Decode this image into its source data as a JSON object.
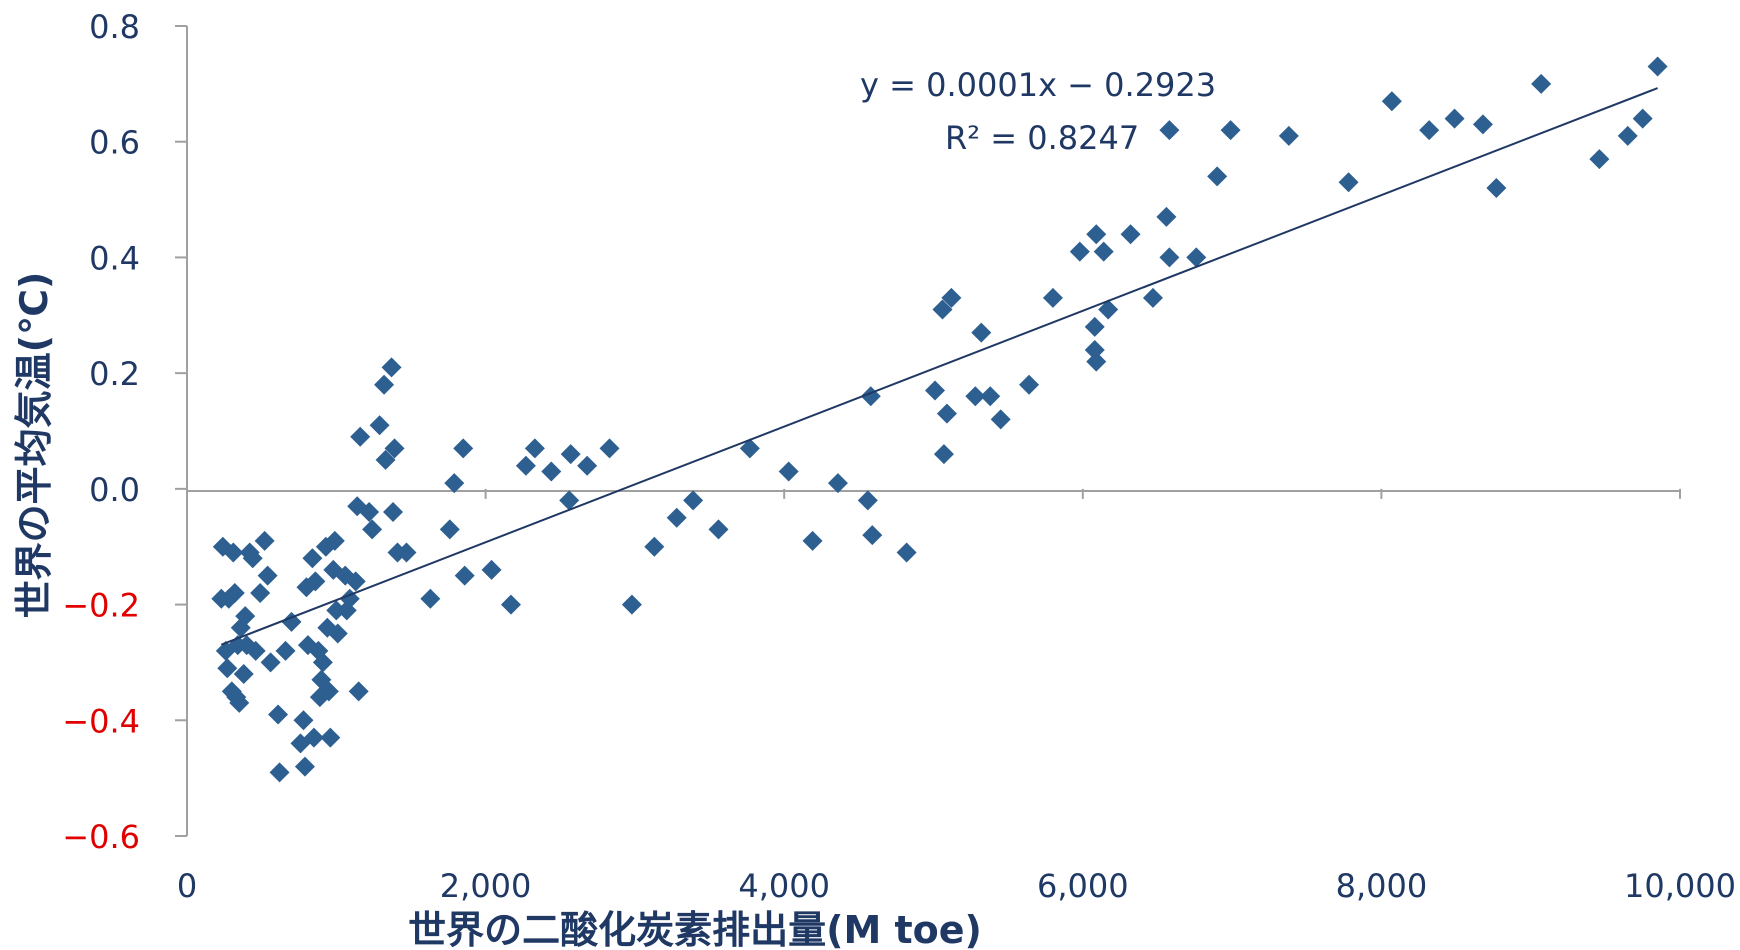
{
  "chart_data": {
    "type": "scatter",
    "xlabel": "世界の二酸化炭素排出量(M toe)",
    "ylabel": "世界の平均気温(℃)",
    "xlim": [
      0,
      10000
    ],
    "ylim": [
      -0.6,
      0.8
    ],
    "xticks": [
      "0",
      "2,000",
      "4,000",
      "6,000",
      "8,000",
      "10,000"
    ],
    "yticks": [
      "0.8",
      "0.6",
      "0.4",
      "0.2",
      "0.0",
      "−0.2",
      "−0.4",
      "−0.6"
    ],
    "grid": false,
    "colors": {
      "points": "#2e5f91",
      "trendline": "#1f3864",
      "axis_text": "#1f3864",
      "negative_tick": "#e00000",
      "axis_line": "#a0a0a0"
    },
    "trendline": {
      "slope": 0.0001,
      "intercept": -0.2923,
      "x_range": [
        230,
        9850
      ]
    },
    "equation": "y = 0.0001x − 0.2923",
    "r_squared": "R² = 0.8247",
    "points": [
      [
        230,
        -0.19
      ],
      [
        240,
        -0.1
      ],
      [
        260,
        -0.28
      ],
      [
        270,
        -0.31
      ],
      [
        280,
        -0.19
      ],
      [
        300,
        -0.35
      ],
      [
        310,
        -0.11
      ],
      [
        320,
        -0.18
      ],
      [
        330,
        -0.36
      ],
      [
        340,
        -0.27
      ],
      [
        350,
        -0.37
      ],
      [
        360,
        -0.24
      ],
      [
        380,
        -0.32
      ],
      [
        390,
        -0.22
      ],
      [
        400,
        -0.27
      ],
      [
        420,
        -0.11
      ],
      [
        440,
        -0.12
      ],
      [
        460,
        -0.28
      ],
      [
        490,
        -0.18
      ],
      [
        520,
        -0.09
      ],
      [
        540,
        -0.15
      ],
      [
        560,
        -0.3
      ],
      [
        610,
        -0.39
      ],
      [
        620,
        -0.49
      ],
      [
        660,
        -0.28
      ],
      [
        700,
        -0.23
      ],
      [
        760,
        -0.44
      ],
      [
        780,
        -0.4
      ],
      [
        790,
        -0.48
      ],
      [
        800,
        -0.17
      ],
      [
        810,
        -0.27
      ],
      [
        840,
        -0.12
      ],
      [
        850,
        -0.43
      ],
      [
        860,
        -0.16
      ],
      [
        880,
        -0.28
      ],
      [
        890,
        -0.36
      ],
      [
        900,
        -0.33
      ],
      [
        910,
        -0.3
      ],
      [
        930,
        -0.1
      ],
      [
        940,
        -0.24
      ],
      [
        950,
        -0.35
      ],
      [
        960,
        -0.43
      ],
      [
        980,
        -0.14
      ],
      [
        990,
        -0.09
      ],
      [
        1000,
        -0.21
      ],
      [
        1010,
        -0.25
      ],
      [
        1060,
        -0.15
      ],
      [
        1070,
        -0.21
      ],
      [
        1090,
        -0.19
      ],
      [
        1130,
        -0.16
      ],
      [
        1140,
        -0.03
      ],
      [
        1150,
        -0.35
      ],
      [
        1160,
        0.09
      ],
      [
        1220,
        -0.04
      ],
      [
        1240,
        -0.07
      ],
      [
        1290,
        0.11
      ],
      [
        1320,
        0.18
      ],
      [
        1330,
        0.05
      ],
      [
        1370,
        0.21
      ],
      [
        1380,
        -0.04
      ],
      [
        1390,
        0.07
      ],
      [
        1410,
        -0.11
      ],
      [
        1470,
        -0.11
      ],
      [
        1630,
        -0.19
      ],
      [
        1760,
        -0.07
      ],
      [
        1790,
        0.01
      ],
      [
        1850,
        0.07
      ],
      [
        1860,
        -0.15
      ],
      [
        2040,
        -0.14
      ],
      [
        2170,
        -0.2
      ],
      [
        2270,
        0.04
      ],
      [
        2330,
        0.07
      ],
      [
        2440,
        0.03
      ],
      [
        2560,
        -0.02
      ],
      [
        2570,
        0.06
      ],
      [
        2680,
        0.04
      ],
      [
        2830,
        0.07
      ],
      [
        2980,
        -0.2
      ],
      [
        3130,
        -0.1
      ],
      [
        3280,
        -0.05
      ],
      [
        3390,
        -0.02
      ],
      [
        3560,
        -0.07
      ],
      [
        3770,
        0.07
      ],
      [
        4030,
        0.03
      ],
      [
        4190,
        -0.09
      ],
      [
        4360,
        0.01
      ],
      [
        4560,
        -0.02
      ],
      [
        4580,
        0.16
      ],
      [
        4590,
        -0.08
      ],
      [
        4820,
        -0.11
      ],
      [
        5010,
        0.17
      ],
      [
        5060,
        0.31
      ],
      [
        5070,
        0.06
      ],
      [
        5090,
        0.13
      ],
      [
        5120,
        0.33
      ],
      [
        5280,
        0.16
      ],
      [
        5320,
        0.27
      ],
      [
        5380,
        0.16
      ],
      [
        5450,
        0.12
      ],
      [
        5640,
        0.18
      ],
      [
        5800,
        0.33
      ],
      [
        5980,
        0.41
      ],
      [
        6080,
        0.28
      ],
      [
        6080,
        0.24
      ],
      [
        6090,
        0.44
      ],
      [
        6090,
        0.22
      ],
      [
        6140,
        0.41
      ],
      [
        6170,
        0.31
      ],
      [
        6320,
        0.44
      ],
      [
        6470,
        0.33
      ],
      [
        6560,
        0.47
      ],
      [
        6580,
        0.4
      ],
      [
        6580,
        0.62
      ],
      [
        6760,
        0.4
      ],
      [
        6900,
        0.54
      ],
      [
        6990,
        0.62
      ],
      [
        7380,
        0.61
      ],
      [
        7780,
        0.53
      ],
      [
        8070,
        0.67
      ],
      [
        8320,
        0.62
      ],
      [
        8490,
        0.64
      ],
      [
        8680,
        0.63
      ],
      [
        8770,
        0.52
      ],
      [
        9070,
        0.7
      ],
      [
        9460,
        0.57
      ],
      [
        9650,
        0.61
      ],
      [
        9750,
        0.64
      ],
      [
        9850,
        0.73
      ]
    ]
  }
}
